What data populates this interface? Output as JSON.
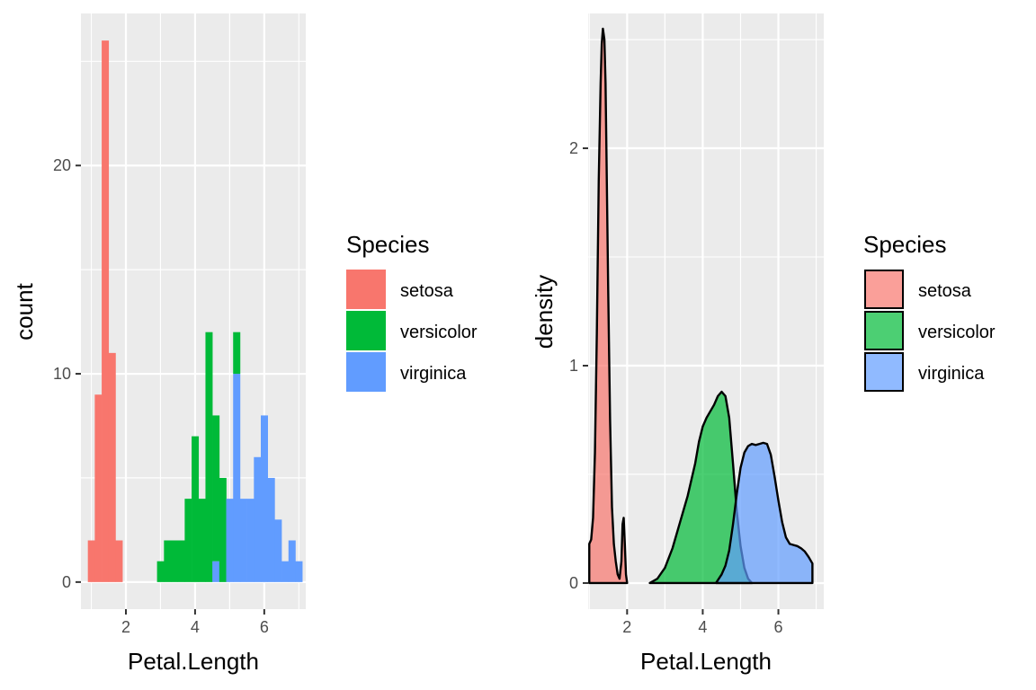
{
  "chart_data": [
    {
      "type": "bar",
      "subtype": "stacked-histogram",
      "xlabel": "Petal.Length",
      "ylabel": "count",
      "xlim": [
        0.7,
        7.2
      ],
      "ylim": [
        -1.3,
        27.3
      ],
      "x_ticks": [
        2,
        4,
        6
      ],
      "y_ticks": [
        0,
        10,
        20
      ],
      "x_tick_labels": [
        "2",
        "4",
        "6"
      ],
      "y_tick_labels": [
        "0",
        "10",
        "20"
      ],
      "grid": true,
      "legend": {
        "title": "Species",
        "position": "right",
        "entries": [
          "setosa",
          "versicolor",
          "virginica"
        ]
      },
      "bin_width": 0.2,
      "bin_start": 0.9,
      "series": [
        {
          "name": "setosa",
          "color": "#F8766D",
          "values": [
            2,
            9,
            26,
            11,
            2,
            0,
            0,
            0,
            0,
            0,
            0,
            0,
            0,
            0,
            0,
            0,
            0,
            0,
            0,
            0,
            0,
            0,
            0,
            0,
            0,
            0,
            0,
            0,
            0,
            0,
            0
          ]
        },
        {
          "name": "versicolor",
          "color": "#00BA38",
          "values": [
            0,
            0,
            0,
            0,
            0,
            0,
            0,
            0,
            0,
            0,
            1,
            2,
            2,
            2,
            4,
            7,
            4,
            12,
            7,
            5,
            0,
            2,
            0,
            0,
            0,
            0,
            0,
            0,
            0,
            0,
            0
          ]
        },
        {
          "name": "virginica",
          "color": "#619CFF",
          "values": [
            0,
            0,
            0,
            0,
            0,
            0,
            0,
            0,
            0,
            0,
            0,
            0,
            0,
            0,
            0,
            0,
            0,
            0,
            1,
            0,
            4,
            10,
            4,
            4,
            6,
            8,
            5,
            3,
            1,
            2,
            1
          ]
        }
      ]
    },
    {
      "type": "area",
      "subtype": "density",
      "xlabel": "Petal.Length",
      "ylabel": "density",
      "xlim": [
        0.97,
        7.2
      ],
      "ylim": [
        -0.12,
        2.62
      ],
      "x_ticks": [
        2,
        4,
        6
      ],
      "y_ticks": [
        0,
        1,
        2
      ],
      "x_tick_labels": [
        "2",
        "4",
        "6"
      ],
      "y_tick_labels": [
        "0",
        "1",
        "2"
      ],
      "grid": true,
      "legend": {
        "title": "Species",
        "position": "right",
        "entries": [
          "setosa",
          "versicolor",
          "virginica"
        ]
      },
      "series": [
        {
          "name": "setosa",
          "color": "#F8766D",
          "x": [
            1.0,
            1.05,
            1.1,
            1.15,
            1.2,
            1.25,
            1.3,
            1.33,
            1.36,
            1.4,
            1.43,
            1.46,
            1.5,
            1.55,
            1.6,
            1.65,
            1.7,
            1.75,
            1.8,
            1.85,
            1.88,
            1.91,
            1.94,
            1.97,
            2.0
          ],
          "y": [
            0.18,
            0.2,
            0.3,
            0.6,
            1.15,
            1.85,
            2.3,
            2.48,
            2.55,
            2.5,
            2.3,
            1.9,
            1.35,
            0.75,
            0.35,
            0.18,
            0.1,
            0.04,
            0.02,
            0.1,
            0.27,
            0.3,
            0.18,
            0.04,
            0.0
          ]
        },
        {
          "name": "versicolor",
          "color": "#00BA38",
          "x": [
            2.6,
            2.8,
            3.0,
            3.2,
            3.4,
            3.6,
            3.8,
            3.9,
            4.0,
            4.1,
            4.2,
            4.3,
            4.4,
            4.5,
            4.6,
            4.7,
            4.8,
            4.9,
            5.0,
            5.1,
            5.2,
            5.3
          ],
          "y": [
            0.0,
            0.02,
            0.07,
            0.16,
            0.28,
            0.4,
            0.55,
            0.65,
            0.72,
            0.76,
            0.79,
            0.82,
            0.86,
            0.88,
            0.86,
            0.76,
            0.55,
            0.33,
            0.17,
            0.07,
            0.02,
            0.0
          ]
        },
        {
          "name": "virginica",
          "color": "#619CFF",
          "x": [
            4.35,
            4.5,
            4.6,
            4.7,
            4.8,
            4.9,
            5.0,
            5.1,
            5.2,
            5.3,
            5.4,
            5.5,
            5.6,
            5.7,
            5.8,
            5.9,
            6.0,
            6.1,
            6.2,
            6.3,
            6.4,
            6.5,
            6.6,
            6.7,
            6.8,
            6.9
          ],
          "y": [
            0.0,
            0.04,
            0.08,
            0.15,
            0.27,
            0.41,
            0.53,
            0.6,
            0.63,
            0.64,
            0.635,
            0.64,
            0.645,
            0.64,
            0.59,
            0.49,
            0.38,
            0.28,
            0.21,
            0.18,
            0.175,
            0.17,
            0.16,
            0.145,
            0.12,
            0.09
          ]
        }
      ]
    }
  ]
}
